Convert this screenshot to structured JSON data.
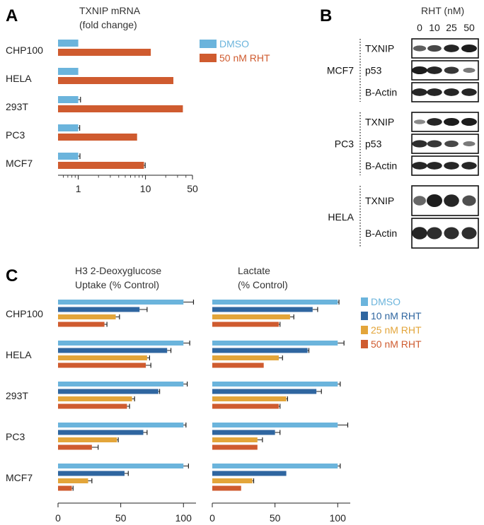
{
  "panels": {
    "a": "A",
    "b": "B",
    "c": "C"
  },
  "colors": {
    "dmso": "#6bb4dc",
    "rht10": "#2f66a0",
    "rht25": "#e3a53a",
    "rht50": "#cf5b2f",
    "axis": "#222222"
  },
  "chart_data": [
    {
      "id": "A",
      "type": "bar",
      "orientation": "horizontal",
      "title_lines": [
        "TXNIP mRNA",
        "(fold change)"
      ],
      "xscale": "log",
      "xlim": [
        0.5,
        50
      ],
      "xticks": [
        1,
        10,
        50
      ],
      "categories": [
        "CHP100",
        "HELA",
        "293T",
        "PC3",
        "MCF7"
      ],
      "series": [
        {
          "name": "DMSO",
          "color": "#6bb4dc",
          "values": [
            1,
            1,
            1,
            1,
            1
          ],
          "errors": [
            0,
            0,
            0.08,
            0.05,
            0.06
          ]
        },
        {
          "name": "50 nM RHT",
          "color": "#cf5b2f",
          "values": [
            12,
            26,
            36,
            7.5,
            9.5
          ],
          "errors": [
            0,
            0,
            0,
            0,
            0.4
          ]
        }
      ]
    },
    {
      "id": "C1",
      "type": "bar",
      "orientation": "horizontal",
      "title_lines": [
        "H3 2-Deoxyglucose",
        "Uptake (% Control)"
      ],
      "xlim": [
        0,
        110
      ],
      "xticks": [
        0,
        50,
        100
      ],
      "categories": [
        "CHP100",
        "HELA",
        "293T",
        "PC3",
        "MCF7"
      ],
      "series": [
        {
          "name": "DMSO",
          "color": "#6bb4dc",
          "values": [
            100,
            100,
            100,
            100,
            100
          ],
          "errors": [
            8,
            5,
            3,
            2,
            4
          ]
        },
        {
          "name": "10 nM RHT",
          "color": "#2f66a0",
          "values": [
            65,
            87,
            80,
            68,
            53
          ],
          "errors": [
            6,
            3,
            1,
            3,
            3
          ]
        },
        {
          "name": "25 nM RHT",
          "color": "#e3a53a",
          "values": [
            46,
            71,
            59,
            47,
            24
          ],
          "errors": [
            3,
            2,
            2,
            1,
            3
          ]
        },
        {
          "name": "50 nM RHT",
          "color": "#cf5b2f",
          "values": [
            37,
            70,
            55,
            27,
            11
          ],
          "errors": [
            2,
            4,
            2,
            5,
            1
          ]
        }
      ]
    },
    {
      "id": "C2",
      "type": "bar",
      "orientation": "horizontal",
      "title_lines": [
        "Lactate",
        "(% Control)"
      ],
      "xlim": [
        0,
        110
      ],
      "xticks": [
        0,
        50,
        100
      ],
      "categories": [
        "CHP100",
        "HELA",
        "293T",
        "PC3",
        "MCF7"
      ],
      "series": [
        {
          "name": "DMSO",
          "color": "#6bb4dc",
          "values": [
            100,
            100,
            100,
            100,
            100
          ],
          "errors": [
            1,
            5,
            2,
            8,
            2
          ]
        },
        {
          "name": "10 nM RHT",
          "color": "#2f66a0",
          "values": [
            80,
            76,
            83,
            50,
            59
          ],
          "errors": [
            4,
            1,
            4,
            4,
            0
          ]
        },
        {
          "name": "25 nM RHT",
          "color": "#e3a53a",
          "values": [
            62,
            53,
            59,
            36,
            32
          ],
          "errors": [
            3,
            3,
            1,
            4,
            1
          ]
        },
        {
          "name": "50 nM RHT",
          "color": "#cf5b2f",
          "values": [
            53,
            41,
            53,
            36,
            23
          ],
          "errors": [
            1,
            0,
            1,
            0,
            0
          ]
        }
      ]
    }
  ],
  "legend_a": [
    {
      "label": "DMSO",
      "color": "#6bb4dc"
    },
    {
      "label": "50 nM RHT",
      "color": "#cf5b2f"
    }
  ],
  "legend_c": [
    {
      "label": "DMSO",
      "color": "#6bb4dc"
    },
    {
      "label": "10 nM RHT",
      "color": "#2f66a0"
    },
    {
      "label": "25 nM RHT",
      "color": "#e3a53a"
    },
    {
      "label": "50 nM RHT",
      "color": "#cf5b2f"
    }
  ],
  "blot": {
    "header": "RHT (nM)",
    "doses": [
      "0",
      "10",
      "25",
      "50"
    ],
    "groups": [
      {
        "cell": "MCF7",
        "rows": [
          {
            "label": "TXNIP",
            "intensity": [
              0.6,
              0.75,
              0.95,
              1.0
            ]
          },
          {
            "label": "p53",
            "intensity": [
              1.0,
              0.95,
              0.85,
              0.45
            ]
          },
          {
            "label": "B-Actin",
            "intensity": [
              0.95,
              0.95,
              0.95,
              0.95
            ]
          }
        ]
      },
      {
        "cell": "PC3",
        "rows": [
          {
            "label": "TXNIP",
            "intensity": [
              0.35,
              0.95,
              1.0,
              1.0
            ]
          },
          {
            "label": "p53",
            "intensity": [
              0.9,
              0.85,
              0.75,
              0.45
            ]
          },
          {
            "label": "B-Actin",
            "intensity": [
              0.95,
              0.95,
              0.95,
              0.95
            ]
          }
        ]
      },
      {
        "cell": "HELA",
        "rows": [
          {
            "label": "TXNIP",
            "intensity": [
              0.55,
              1.0,
              0.95,
              0.7
            ]
          },
          {
            "label": "B-Actin",
            "intensity": [
              0.95,
              0.9,
              0.9,
              0.9
            ]
          }
        ]
      }
    ]
  }
}
